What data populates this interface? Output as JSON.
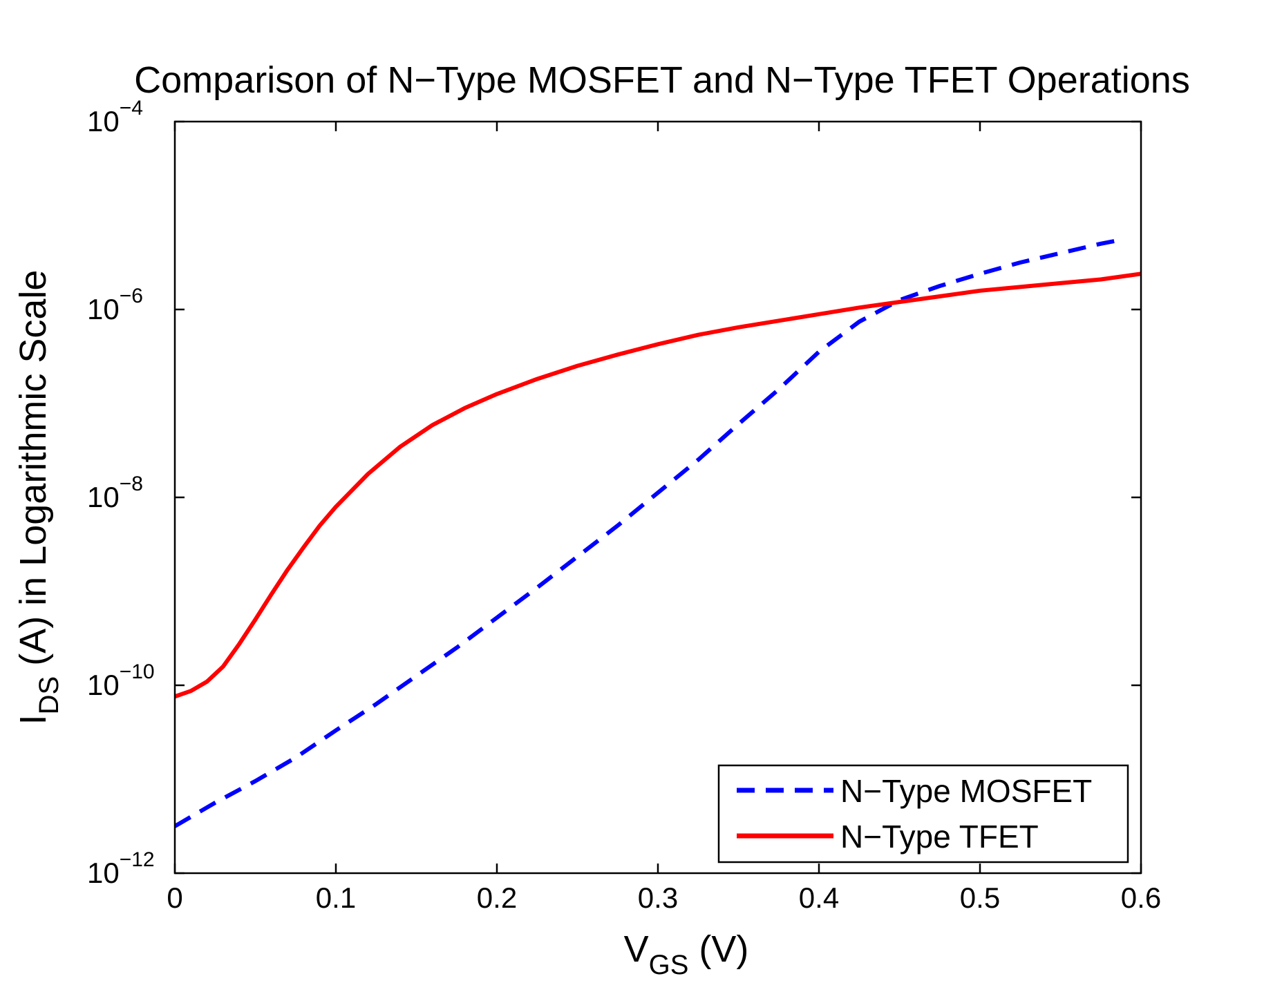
{
  "chart_data": {
    "type": "line",
    "title": "Comparison of N−Type MOSFET and N−Type TFET Operations",
    "xlabel": {
      "main": "V",
      "sub": "GS",
      "unit": " (V)"
    },
    "ylabel": {
      "main": "I",
      "sub": "DS",
      "rest": " (A) in Logarithmic Scale"
    },
    "xlim": [
      0,
      0.6
    ],
    "ylim_log10": [
      -12,
      -4
    ],
    "yscale": "log",
    "x_ticks": [
      {
        "value": 0,
        "label": "0"
      },
      {
        "value": 0.1,
        "label": "0.1"
      },
      {
        "value": 0.2,
        "label": "0.2"
      },
      {
        "value": 0.3,
        "label": "0.3"
      },
      {
        "value": 0.4,
        "label": "0.4"
      },
      {
        "value": 0.5,
        "label": "0.5"
      },
      {
        "value": 0.6,
        "label": "0.6"
      }
    ],
    "y_ticks": [
      {
        "exp": -12,
        "base": "10",
        "label": "−12"
      },
      {
        "exp": -10,
        "base": "10",
        "label": "−10"
      },
      {
        "exp": -8,
        "base": "10",
        "label": "−8"
      },
      {
        "exp": -6,
        "base": "10",
        "label": "−6"
      },
      {
        "exp": -4,
        "base": "10",
        "label": "−4"
      }
    ],
    "legend_position": "bottom-right",
    "series": [
      {
        "name": "N−Type MOSFET",
        "color": "#0000FF",
        "style": "dashed",
        "x": [
          0.0,
          0.025,
          0.05,
          0.075,
          0.1,
          0.125,
          0.15,
          0.175,
          0.2,
          0.225,
          0.25,
          0.275,
          0.3,
          0.325,
          0.35,
          0.375,
          0.4,
          0.425,
          0.45,
          0.475,
          0.5,
          0.525,
          0.55,
          0.575,
          0.59
        ],
        "log10": [
          -11.5,
          -11.25,
          -11.02,
          -10.77,
          -10.48,
          -10.2,
          -9.9,
          -9.6,
          -9.28,
          -8.96,
          -8.63,
          -8.3,
          -7.95,
          -7.6,
          -7.22,
          -6.85,
          -6.45,
          -6.13,
          -5.9,
          -5.75,
          -5.62,
          -5.5,
          -5.4,
          -5.3,
          -5.25
        ]
      },
      {
        "name": "N−Type TFET",
        "color": "#FF0000",
        "style": "solid",
        "x": [
          0.0,
          0.01,
          0.02,
          0.03,
          0.04,
          0.05,
          0.06,
          0.07,
          0.08,
          0.09,
          0.1,
          0.12,
          0.14,
          0.16,
          0.18,
          0.2,
          0.225,
          0.25,
          0.275,
          0.3,
          0.325,
          0.35,
          0.375,
          0.4,
          0.425,
          0.45,
          0.475,
          0.5,
          0.525,
          0.55,
          0.575,
          0.6
        ],
        "log10": [
          -10.12,
          -10.06,
          -9.96,
          -9.8,
          -9.56,
          -9.3,
          -9.03,
          -8.77,
          -8.53,
          -8.3,
          -8.1,
          -7.75,
          -7.46,
          -7.23,
          -7.05,
          -6.9,
          -6.74,
          -6.6,
          -6.48,
          -6.37,
          -6.27,
          -6.19,
          -6.12,
          -6.05,
          -5.98,
          -5.92,
          -5.86,
          -5.8,
          -5.76,
          -5.72,
          -5.68,
          -5.62
        ]
      }
    ]
  }
}
